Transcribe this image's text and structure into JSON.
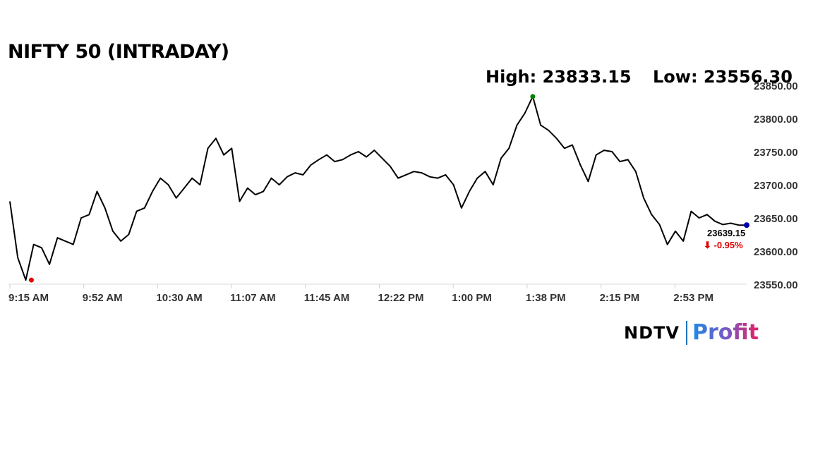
{
  "header": {
    "title": "NIFTY 50 (INTRADAY)",
    "high_text": "High: 23833.15",
    "low_text": "Low: 23556.30"
  },
  "brand": {
    "left": "NDTV",
    "right": "Profit"
  },
  "chart_data": {
    "type": "line",
    "title": "NIFTY 50 (INTRADAY)",
    "x_ticks": [
      "9:15 AM",
      "9:52 AM",
      "10:30 AM",
      "11:07 AM",
      "11:45 AM",
      "12:22 PM",
      "1:00 PM",
      "1:38 PM",
      "2:15 PM",
      "2:53 PM"
    ],
    "y_ticks": [
      "23850.00",
      "23800.00",
      "23750.00",
      "23700.00",
      "23650.00",
      "23600.00",
      "23550.00"
    ],
    "ylim": [
      23550,
      23850
    ],
    "y_axis_side": "right",
    "grid": false,
    "high": 23833.15,
    "low": 23556.3,
    "last_value": "23639.15",
    "change": "⬇ -0.95%",
    "colors": {
      "line": "#000000",
      "high_marker": "#008000",
      "low_marker": "#e00000",
      "last_marker": "#0000b0",
      "change": "#e00000"
    },
    "series": [
      {
        "x": [
          "9:15 AM",
          "9:19 AM",
          "9:23 AM",
          "9:27 AM",
          "9:31 AM",
          "9:35 AM",
          "9:39 AM",
          "9:43 AM",
          "9:47 AM",
          "9:51 AM",
          "9:55 AM",
          "9:59 AM",
          "10:03 AM",
          "10:07 AM",
          "10:11 AM",
          "10:15 AM",
          "10:19 AM",
          "10:23 AM",
          "10:27 AM",
          "10:31 AM",
          "10:35 AM",
          "10:39 AM",
          "10:43 AM",
          "10:47 AM",
          "10:51 AM",
          "10:55 AM",
          "10:59 AM",
          "11:03 AM",
          "11:07 AM",
          "11:11 AM",
          "11:15 AM",
          "11:19 AM",
          "11:23 AM",
          "11:27 AM",
          "11:31 AM",
          "11:35 AM",
          "11:39 AM",
          "11:43 AM",
          "11:47 AM",
          "11:51 AM",
          "11:55 AM",
          "11:59 AM",
          "12:03 PM",
          "12:07 PM",
          "12:11 PM",
          "12:15 PM",
          "12:19 PM",
          "12:23 PM",
          "12:27 PM",
          "12:31 PM",
          "12:35 PM",
          "12:39 PM",
          "12:43 PM",
          "12:47 PM",
          "12:51 PM",
          "12:55 PM",
          "12:59 PM",
          "1:03 PM",
          "1:07 PM",
          "1:11 PM",
          "1:15 PM",
          "1:19 PM",
          "1:23 PM",
          "1:27 PM",
          "1:31 PM",
          "1:35 PM",
          "1:39 PM",
          "1:43 PM",
          "1:47 PM",
          "1:51 PM",
          "1:55 PM",
          "1:59 PM",
          "2:03 PM",
          "2:07 PM",
          "2:11 PM",
          "2:15 PM",
          "2:19 PM",
          "2:23 PM",
          "2:27 PM",
          "2:31 PM",
          "2:35 PM",
          "2:39 PM",
          "2:43 PM",
          "2:47 PM",
          "2:51 PM",
          "2:55 PM",
          "2:59 PM",
          "3:03 PM",
          "3:07 PM",
          "3:11 PM",
          "3:15 PM",
          "3:19 PM",
          "3:23 PM",
          "3:27 PM"
        ],
        "values": [
          23675,
          23590,
          23556.3,
          23610,
          23605,
          23580,
          23620,
          23615,
          23610,
          23650,
          23655,
          23690,
          23665,
          23630,
          23615,
          23625,
          23660,
          23665,
          23690,
          23710,
          23700,
          23680,
          23695,
          23710,
          23700,
          23755,
          23770,
          23745,
          23755,
          23675,
          23695,
          23685,
          23690,
          23710,
          23700,
          23712,
          23718,
          23715,
          23730,
          23738,
          23745,
          23735,
          23738,
          23745,
          23750,
          23742,
          23752,
          23740,
          23728,
          23710,
          23715,
          23720,
          23718,
          23712,
          23710,
          23715,
          23700,
          23665,
          23690,
          23710,
          23720,
          23700,
          23740,
          23755,
          23790,
          23808,
          23833.15,
          23790,
          23782,
          23770,
          23755,
          23760,
          23730,
          23705,
          23745,
          23752,
          23750,
          23735,
          23738,
          23720,
          23680,
          23655,
          23640,
          23610,
          23630,
          23615,
          23660,
          23650,
          23655,
          23645,
          23640,
          23642,
          23639.15,
          23639.15
        ]
      }
    ]
  }
}
